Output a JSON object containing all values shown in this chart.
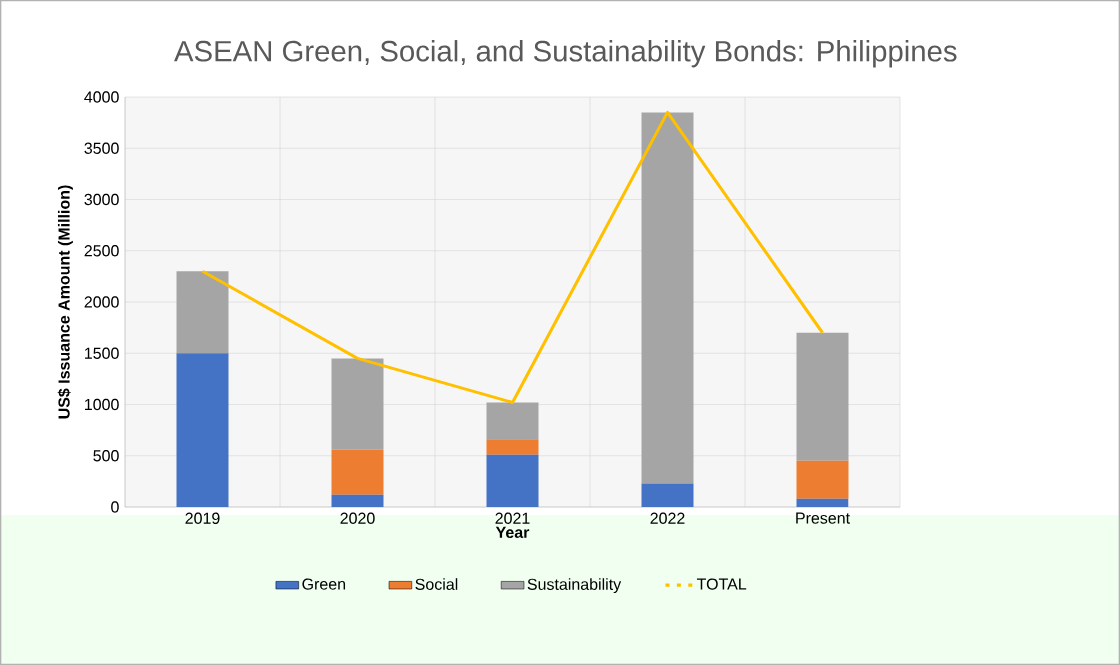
{
  "chart_data": {
    "type": "bar",
    "stacked": true,
    "title": "ASEAN Green, Social, and Sustainability Bonds: Philippines",
    "xlabel": "Year",
    "ylabel": "US$ Issuance Amount (Million)",
    "categories": [
      "2019",
      "2020",
      "2021",
      "2022",
      "Present"
    ],
    "series": [
      {
        "name": "Green",
        "color": "#4472c4",
        "values": [
          1500,
          120,
          510,
          230,
          80
        ]
      },
      {
        "name": "Social",
        "color": "#ed7d31",
        "values": [
          0,
          440,
          150,
          0,
          370
        ]
      },
      {
        "name": "Sustainability",
        "color": "#a5a5a5",
        "values": [
          800,
          890,
          360,
          3620,
          1250
        ]
      },
      {
        "name": "TOTAL",
        "type": "line",
        "color": "#ffc000",
        "values": [
          2300,
          1450,
          1020,
          3850,
          1700
        ]
      }
    ],
    "ylim": [
      0,
      4000
    ],
    "yticks": [
      0,
      500,
      1000,
      1500,
      2000,
      2500,
      3000,
      3500,
      4000
    ],
    "grid": true,
    "legend": "bottom"
  }
}
